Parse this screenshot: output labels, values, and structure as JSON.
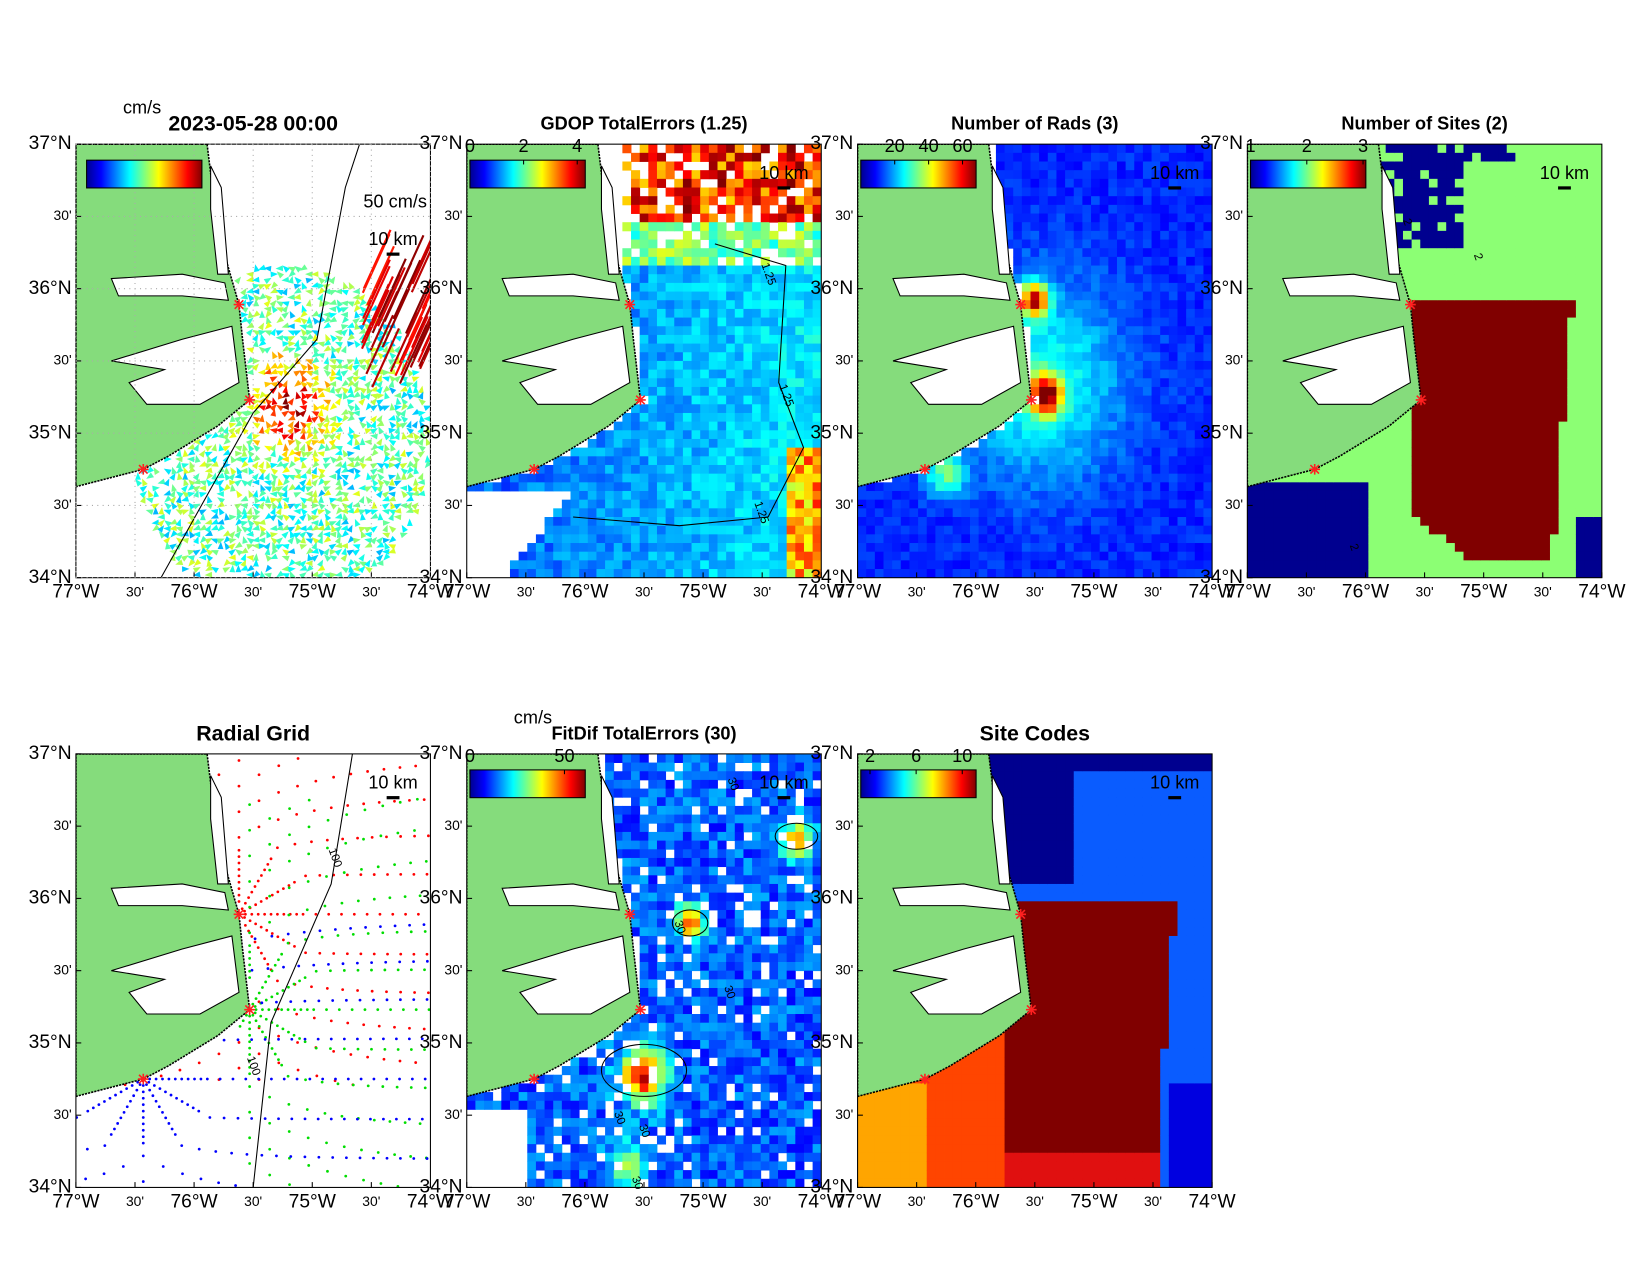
{
  "lat_ticks": [
    {
      "value": 37,
      "label": "37°N"
    },
    {
      "value": 36.5,
      "label": "30'"
    },
    {
      "value": 36,
      "label": "36°N"
    },
    {
      "value": 35.5,
      "label": "30'"
    },
    {
      "value": 35,
      "label": "35°N"
    },
    {
      "value": 34.5,
      "label": "30'"
    },
    {
      "value": 34,
      "label": "34°N"
    }
  ],
  "lon_ticks": [
    {
      "value": -77,
      "label": "77°W"
    },
    {
      "value": -76.5,
      "label": "30'"
    },
    {
      "value": -76,
      "label": "76°W"
    },
    {
      "value": -75.5,
      "label": "30'"
    },
    {
      "value": -75,
      "label": "75°W"
    },
    {
      "value": -74.5,
      "label": "30'"
    },
    {
      "value": -74,
      "label": "74°W"
    }
  ],
  "panels": [
    {
      "title": "2023-05-28 00:00",
      "unit": "cm/s",
      "vector_label": "50 cm/s",
      "scale_label": "10 km"
    },
    {
      "title": "GDOP TotalErrors (1.25)",
      "clim": [
        0,
        4.3
      ],
      "cticks": [
        0,
        2,
        4
      ],
      "scale_label": "10 km",
      "contour_label": "1.25"
    },
    {
      "title": "Number of Rads (3)",
      "clim": [
        0,
        68
      ],
      "cticks": [
        20,
        40,
        60
      ],
      "scale_label": "10 km"
    },
    {
      "title": "Number of Sites (2)",
      "clim": [
        1,
        3.05
      ],
      "cticks": [
        1,
        2,
        3
      ],
      "scale_label": "10 km",
      "contour_label": "2"
    },
    {
      "title": "Radial Grid",
      "scale_label": "10 km",
      "contour_label": "100"
    },
    {
      "title": "FitDif TotalErrors (30)",
      "unit": "cm/s",
      "clim": [
        0,
        61
      ],
      "cticks": [
        0,
        50
      ],
      "scale_label": "10 km",
      "contour_label": "30"
    },
    {
      "title": "Site Codes",
      "clim": [
        1.2,
        11.2
      ],
      "cticks": [
        2,
        6,
        10
      ],
      "scale_label": "10 km"
    }
  ]
}
